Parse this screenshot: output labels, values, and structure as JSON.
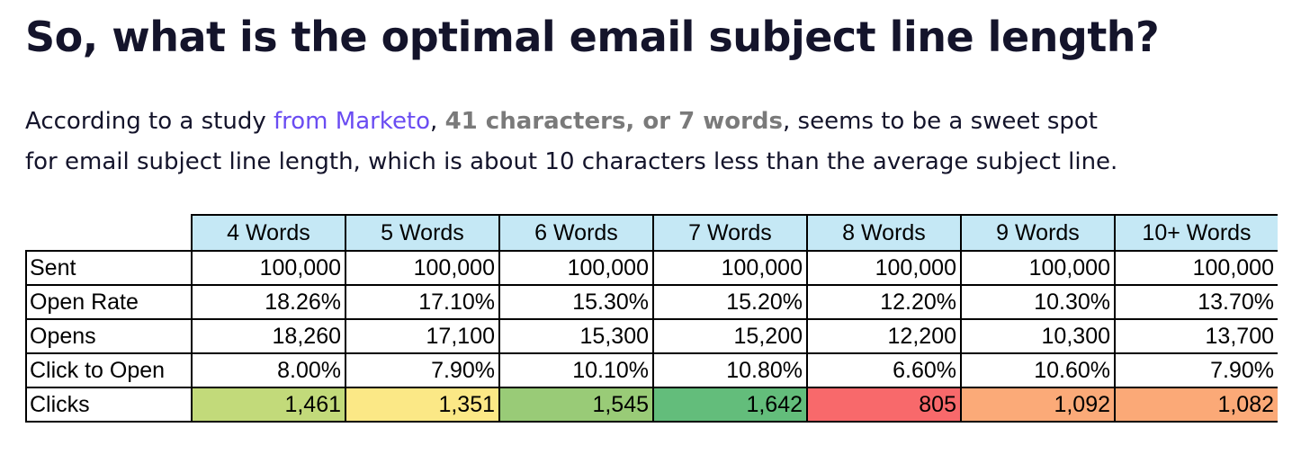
{
  "article": {
    "heading": "So, what is the optimal email subject line length?",
    "intro": {
      "part1": "According to a study ",
      "link_text": "from Marketo",
      "part2": ", ",
      "highlight": "41 characters, or 7 words",
      "part3": ", seems to be a sweet spot",
      "line2": "for email subject line length, which is about 10 characters less than the average subject line."
    }
  },
  "table": {
    "columns": [
      "4 Words",
      "5 Words",
      "6 Words",
      "7 Words",
      "8 Words",
      "9 Words",
      "10+ Words"
    ],
    "rows": [
      {
        "label": "Sent",
        "values": [
          "100,000",
          "100,000",
          "100,000",
          "100,000",
          "100,000",
          "100,000",
          "100,000"
        ]
      },
      {
        "label": "Open Rate",
        "values": [
          "18.26%",
          "17.10%",
          "15.30%",
          "15.20%",
          "12.20%",
          "10.30%",
          "13.70%"
        ]
      },
      {
        "label": "Opens",
        "values": [
          "18,260",
          "17,100",
          "15,300",
          "15,200",
          "12,200",
          "10,300",
          "13,700"
        ]
      },
      {
        "label": "Click to Open",
        "values": [
          "8.00%",
          "7.90%",
          "10.10%",
          "10.80%",
          "6.60%",
          "10.60%",
          "7.90%"
        ]
      },
      {
        "label": "Clicks",
        "values": [
          "1,461",
          "1,351",
          "1,545",
          "1,642",
          "805",
          "1,092",
          "1,082"
        ]
      }
    ],
    "clicks_cell_colors": [
      "#c2da7a",
      "#fbe886",
      "#99cb77",
      "#63bd7b",
      "#f8696b",
      "#fbaa78",
      "#fba977"
    ]
  }
}
